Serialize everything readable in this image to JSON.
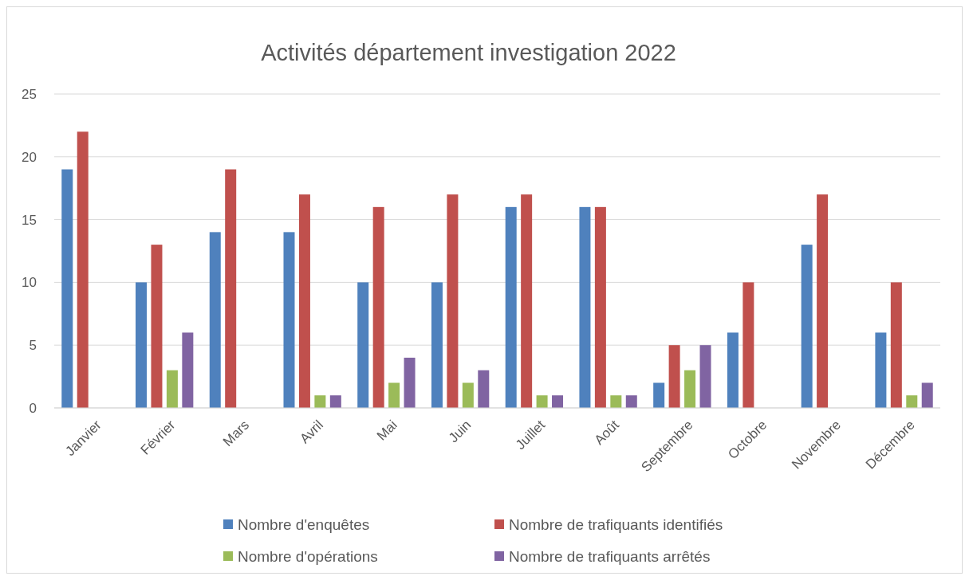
{
  "chart_data": {
    "type": "bar",
    "title": "Activités département investigation 2022",
    "categories": [
      "Janvier",
      "Février",
      "Mars",
      "Avril",
      "Mai",
      "Juin",
      "Juillet",
      "Août",
      "Septembre",
      "Octobre",
      "Novembre",
      "Décembre"
    ],
    "series": [
      {
        "name": "Nombre d'enquêtes",
        "color": "#4f81bd",
        "values": [
          19,
          10,
          14,
          14,
          10,
          10,
          16,
          16,
          2,
          6,
          13,
          6
        ]
      },
      {
        "name": "Nombre de trafiquants identifiés",
        "color": "#c0504d",
        "values": [
          22,
          13,
          19,
          17,
          16,
          17,
          17,
          16,
          5,
          10,
          17,
          10
        ]
      },
      {
        "name": "Nombre d'opérations",
        "color": "#9bbb59",
        "values": [
          0,
          3,
          0,
          1,
          2,
          2,
          1,
          1,
          3,
          0,
          0,
          1
        ]
      },
      {
        "name": "Nombre de trafiquants arrêtés",
        "color": "#8064a2",
        "values": [
          0,
          6,
          0,
          1,
          4,
          3,
          1,
          1,
          5,
          0,
          0,
          2
        ]
      }
    ],
    "ylim": [
      0,
      25
    ],
    "yticks": [
      0,
      5,
      10,
      15,
      20,
      25
    ],
    "grid": "y",
    "legend": "bottom"
  }
}
